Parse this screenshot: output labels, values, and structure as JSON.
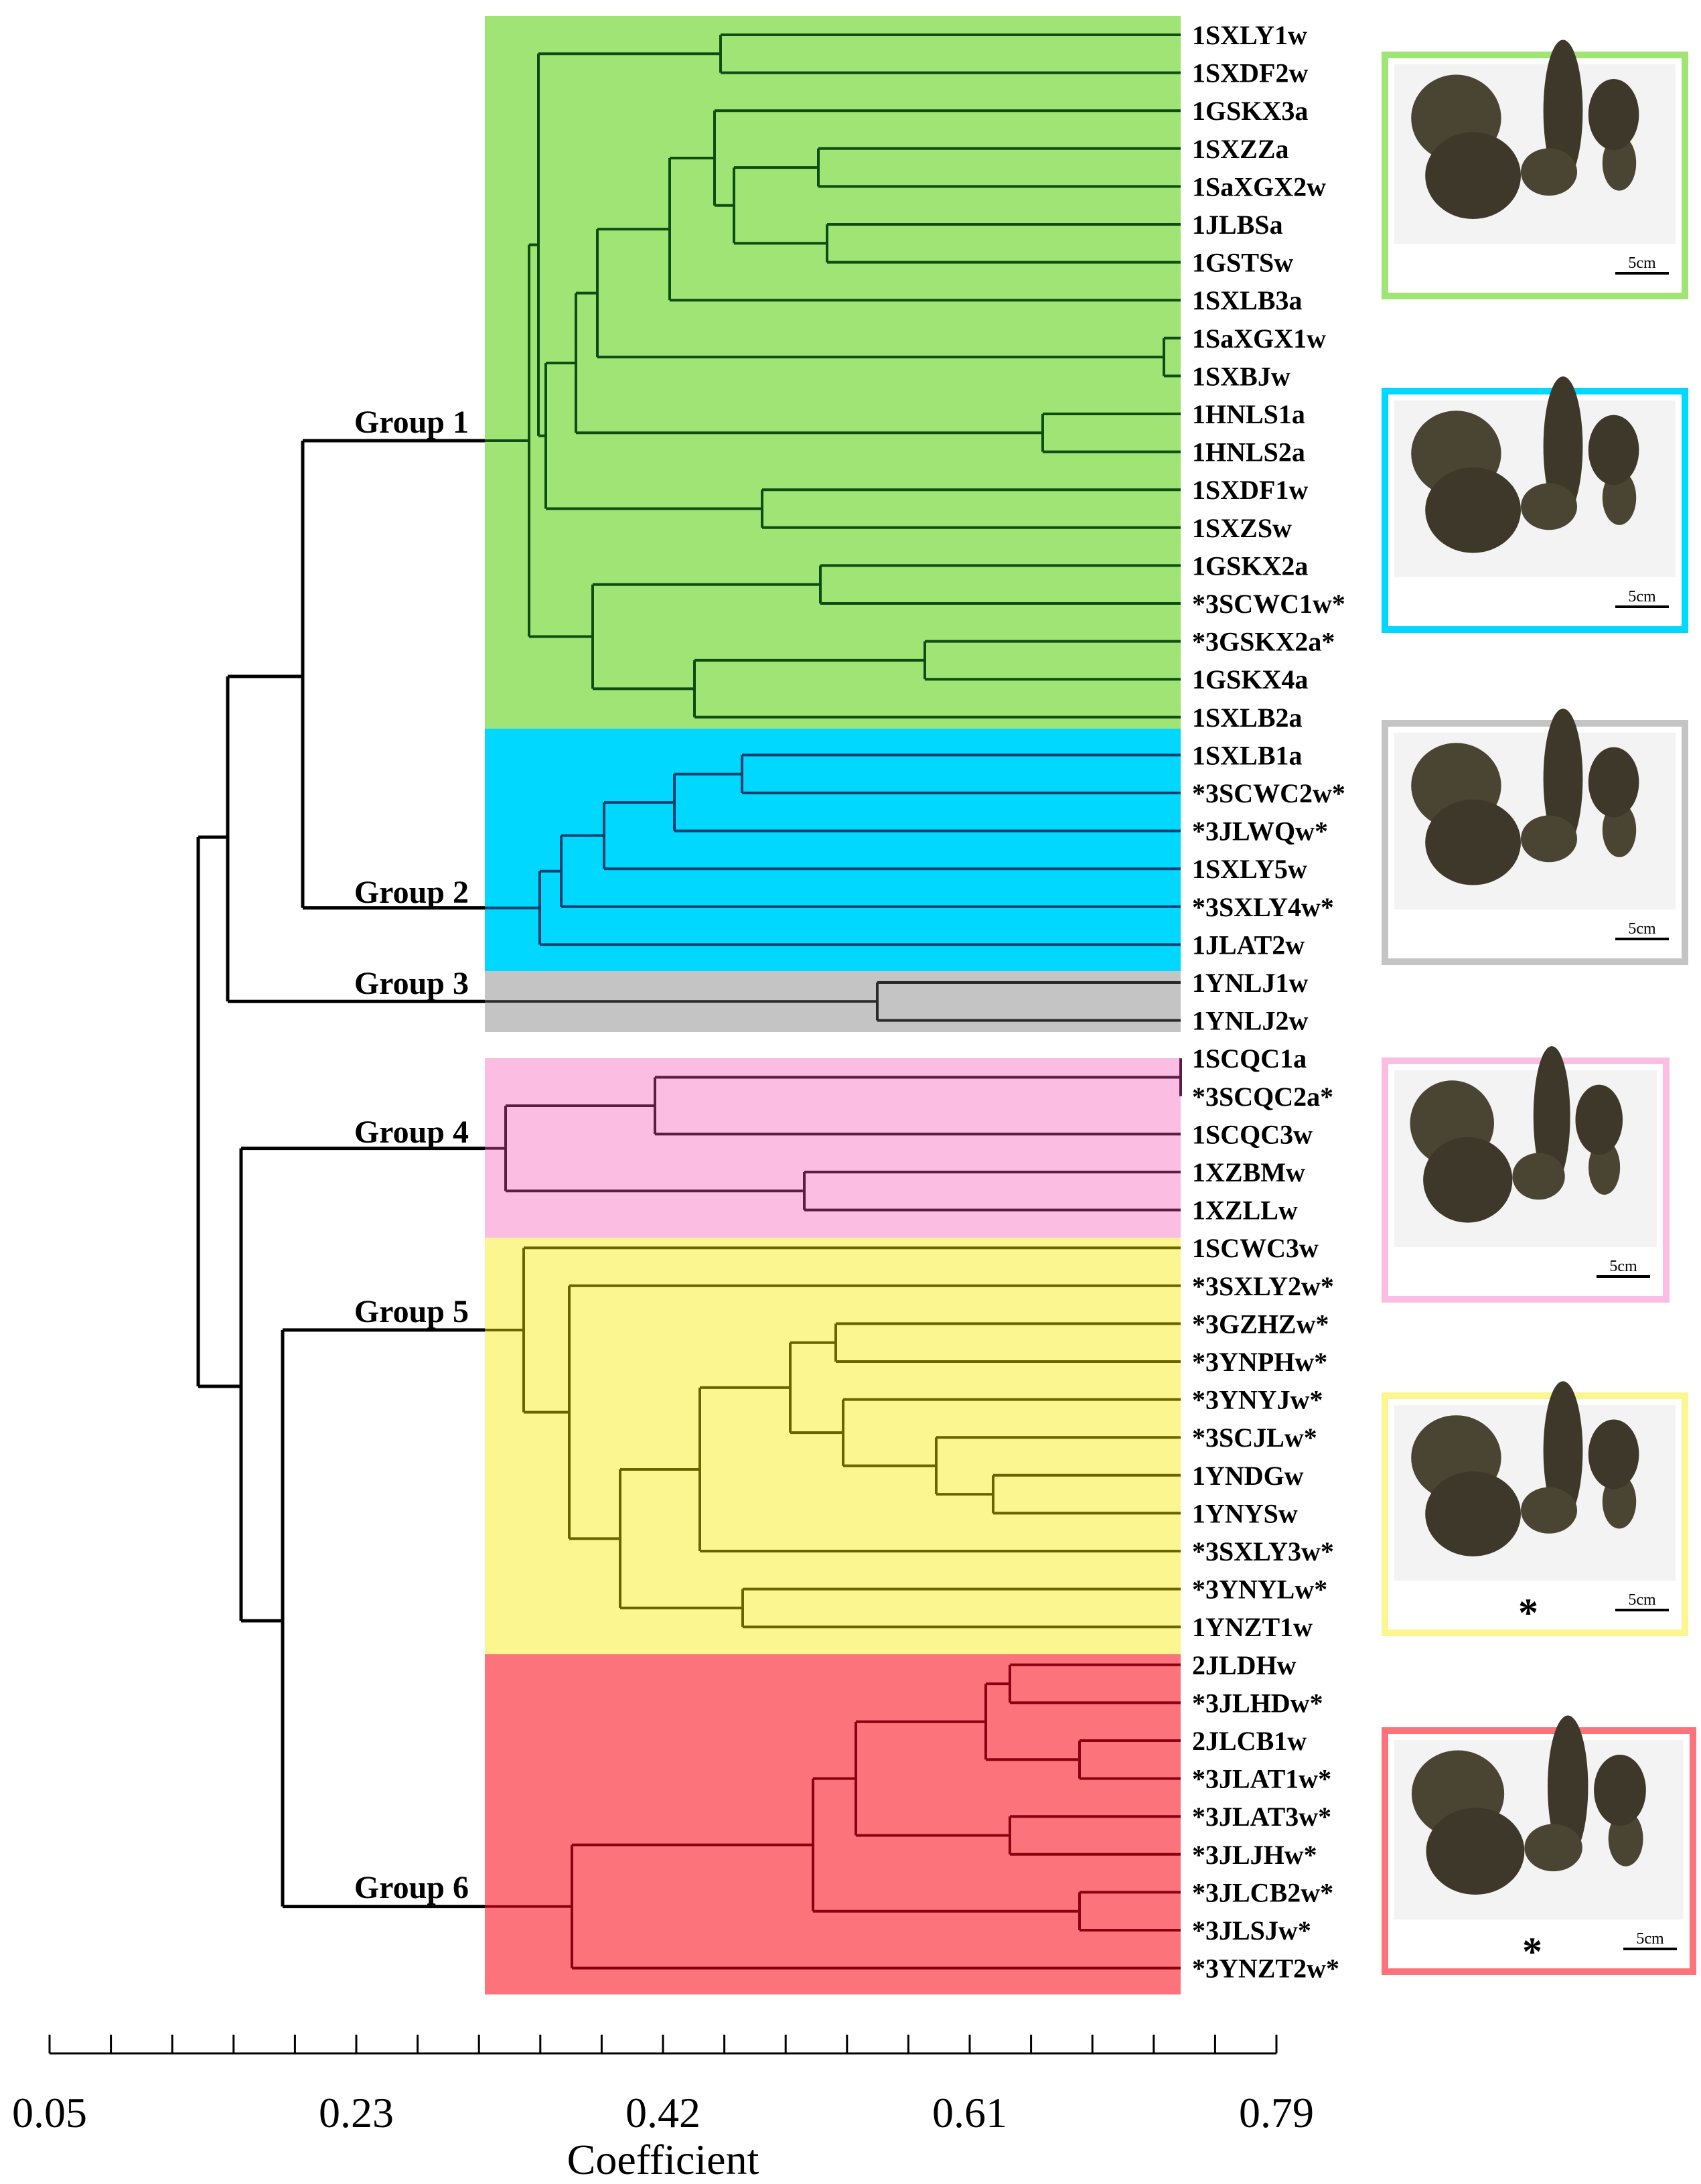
{
  "axis": {
    "label": "Coefficient",
    "ticks": [
      "0.05",
      "0.23",
      "0.42",
      "0.61",
      "0.79"
    ],
    "min": 0.05,
    "max": 0.79
  },
  "groups": [
    {
      "name": "Group 1",
      "color": "#9fe474",
      "line": "#0e4d12"
    },
    {
      "name": "Group 2",
      "color": "#00d8ff",
      "line": "#063f6b"
    },
    {
      "name": "Group 3",
      "color": "#c4c4c4",
      "line": "#2a2a2a"
    },
    {
      "name": "Group 4",
      "color": "#fbbde2",
      "line": "#5a1d44"
    },
    {
      "name": "Group 5",
      "color": "#fcf690",
      "line": "#6b6200"
    },
    {
      "name": "Group 6",
      "color": "#fd737b",
      "line": "#8a0010"
    }
  ],
  "leaves": [
    "1SXLY1w",
    "1SXDF2w",
    "1GSKX3a",
    "1SXZZa",
    "1SaXGX2w",
    "1JLBSa",
    "1GSTSw",
    "1SXLB3a",
    "1SaXGX1w",
    "1SXBJw",
    "1HNLS1a",
    "1HNLS2a",
    "1SXDF1w",
    "1SXZSw",
    "1GSKX2a",
    "*3SCWC1w*",
    "*3GSKX2a*",
    "1GSKX4a",
    "1SXLB2a",
    "1SXLB1a",
    "*3SCWC2w*",
    "*3JLWQw*",
    "1SXLY5w",
    "*3SXLY4w*",
    "1JLAT2w",
    "1YNLJ1w",
    "1YNLJ2w",
    "1SCQC1a",
    "*3SCQC2a*",
    "1SCQC3w",
    "1XZBMw",
    "1XZLLw",
    "1SCWC3w",
    "*3SXLY2w*",
    "*3GZHZw*",
    "*3YNPHw*",
    "*3YNYJw*",
    "*3SCJLw*",
    "1YNDGw",
    "1YNYSw",
    "*3SXLY3w*",
    "*3YNYLw*",
    "1YNZT1w",
    "2JLDHw",
    "*3JLHDw*",
    "2JLCB1w",
    "*3JLAT1w*",
    "*3JLAT3w*",
    "*3JLJHw*",
    "*3JLCB2w*",
    "*3JLSJw*",
    "*3YNZT2w*"
  ],
  "photos": [
    {
      "frame": "#9fe474",
      "scale": "5cm",
      "mark": ""
    },
    {
      "frame": "#00d8ff",
      "scale": "5cm",
      "mark": ""
    },
    {
      "frame": "#c4c4c4",
      "scale": "5cm",
      "mark": ""
    },
    {
      "frame": "#fbbde2",
      "scale": "5cm",
      "mark": ""
    },
    {
      "frame": "#fcf690",
      "scale": "5cm",
      "mark": "*"
    },
    {
      "frame": "#fd737b",
      "scale": "5cm",
      "mark": "*"
    }
  ]
}
